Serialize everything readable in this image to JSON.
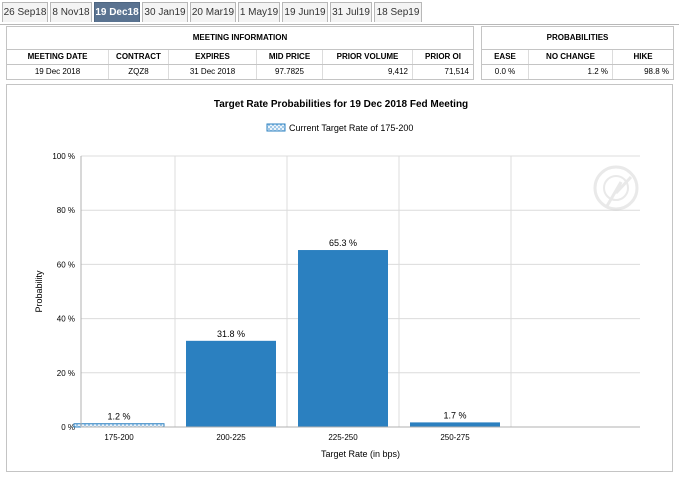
{
  "tabs": [
    "26 Sep18",
    "8 Nov18",
    "19 Dec18",
    "30 Jan19",
    "20 Mar19",
    "1 May19",
    "19 Jun19",
    "31 Jul19",
    "18 Sep19"
  ],
  "active_tab": "19 Dec18",
  "meeting_info": {
    "title": "MEETING INFORMATION",
    "headers": [
      "MEETING DATE",
      "CONTRACT",
      "EXPIRES",
      "MID PRICE",
      "PRIOR VOLUME",
      "PRIOR OI"
    ],
    "row": [
      "19 Dec 2018",
      "ZQZ8",
      "31 Dec 2018",
      "97.7825",
      "9,412",
      "71,514"
    ]
  },
  "probabilities": {
    "title": "PROBABILITIES",
    "headers": [
      "EASE",
      "NO CHANGE",
      "HIKE"
    ],
    "row": [
      "0.0 %",
      "1.2 %",
      "98.8 %"
    ]
  },
  "colors": {
    "bar": "#2b80c0",
    "current_bar": "#6fa8d6",
    "grid": "#dcdcdc",
    "active_tab": "#5a7391"
  },
  "chart_data": {
    "type": "bar",
    "title": "Target Rate Probabilities for 19 Dec 2018 Fed Meeting",
    "legend": "Current Target Rate of 175-200",
    "xlabel": "Target Rate (in bps)",
    "ylabel": "Probability",
    "categories": [
      "175-200",
      "200-225",
      "225-250",
      "250-275"
    ],
    "values": [
      1.2,
      31.8,
      65.3,
      1.7
    ],
    "data_labels": [
      "1.2 %",
      "31.8 %",
      "65.3 %",
      "1.7 %"
    ],
    "current_category": "175-200",
    "ylim": [
      0,
      100
    ],
    "yticks": [
      0,
      20,
      40,
      60,
      80,
      100
    ],
    "ytick_labels": [
      "0 %",
      "20 %",
      "40 %",
      "60 %",
      "80 %",
      "100 %"
    ]
  }
}
